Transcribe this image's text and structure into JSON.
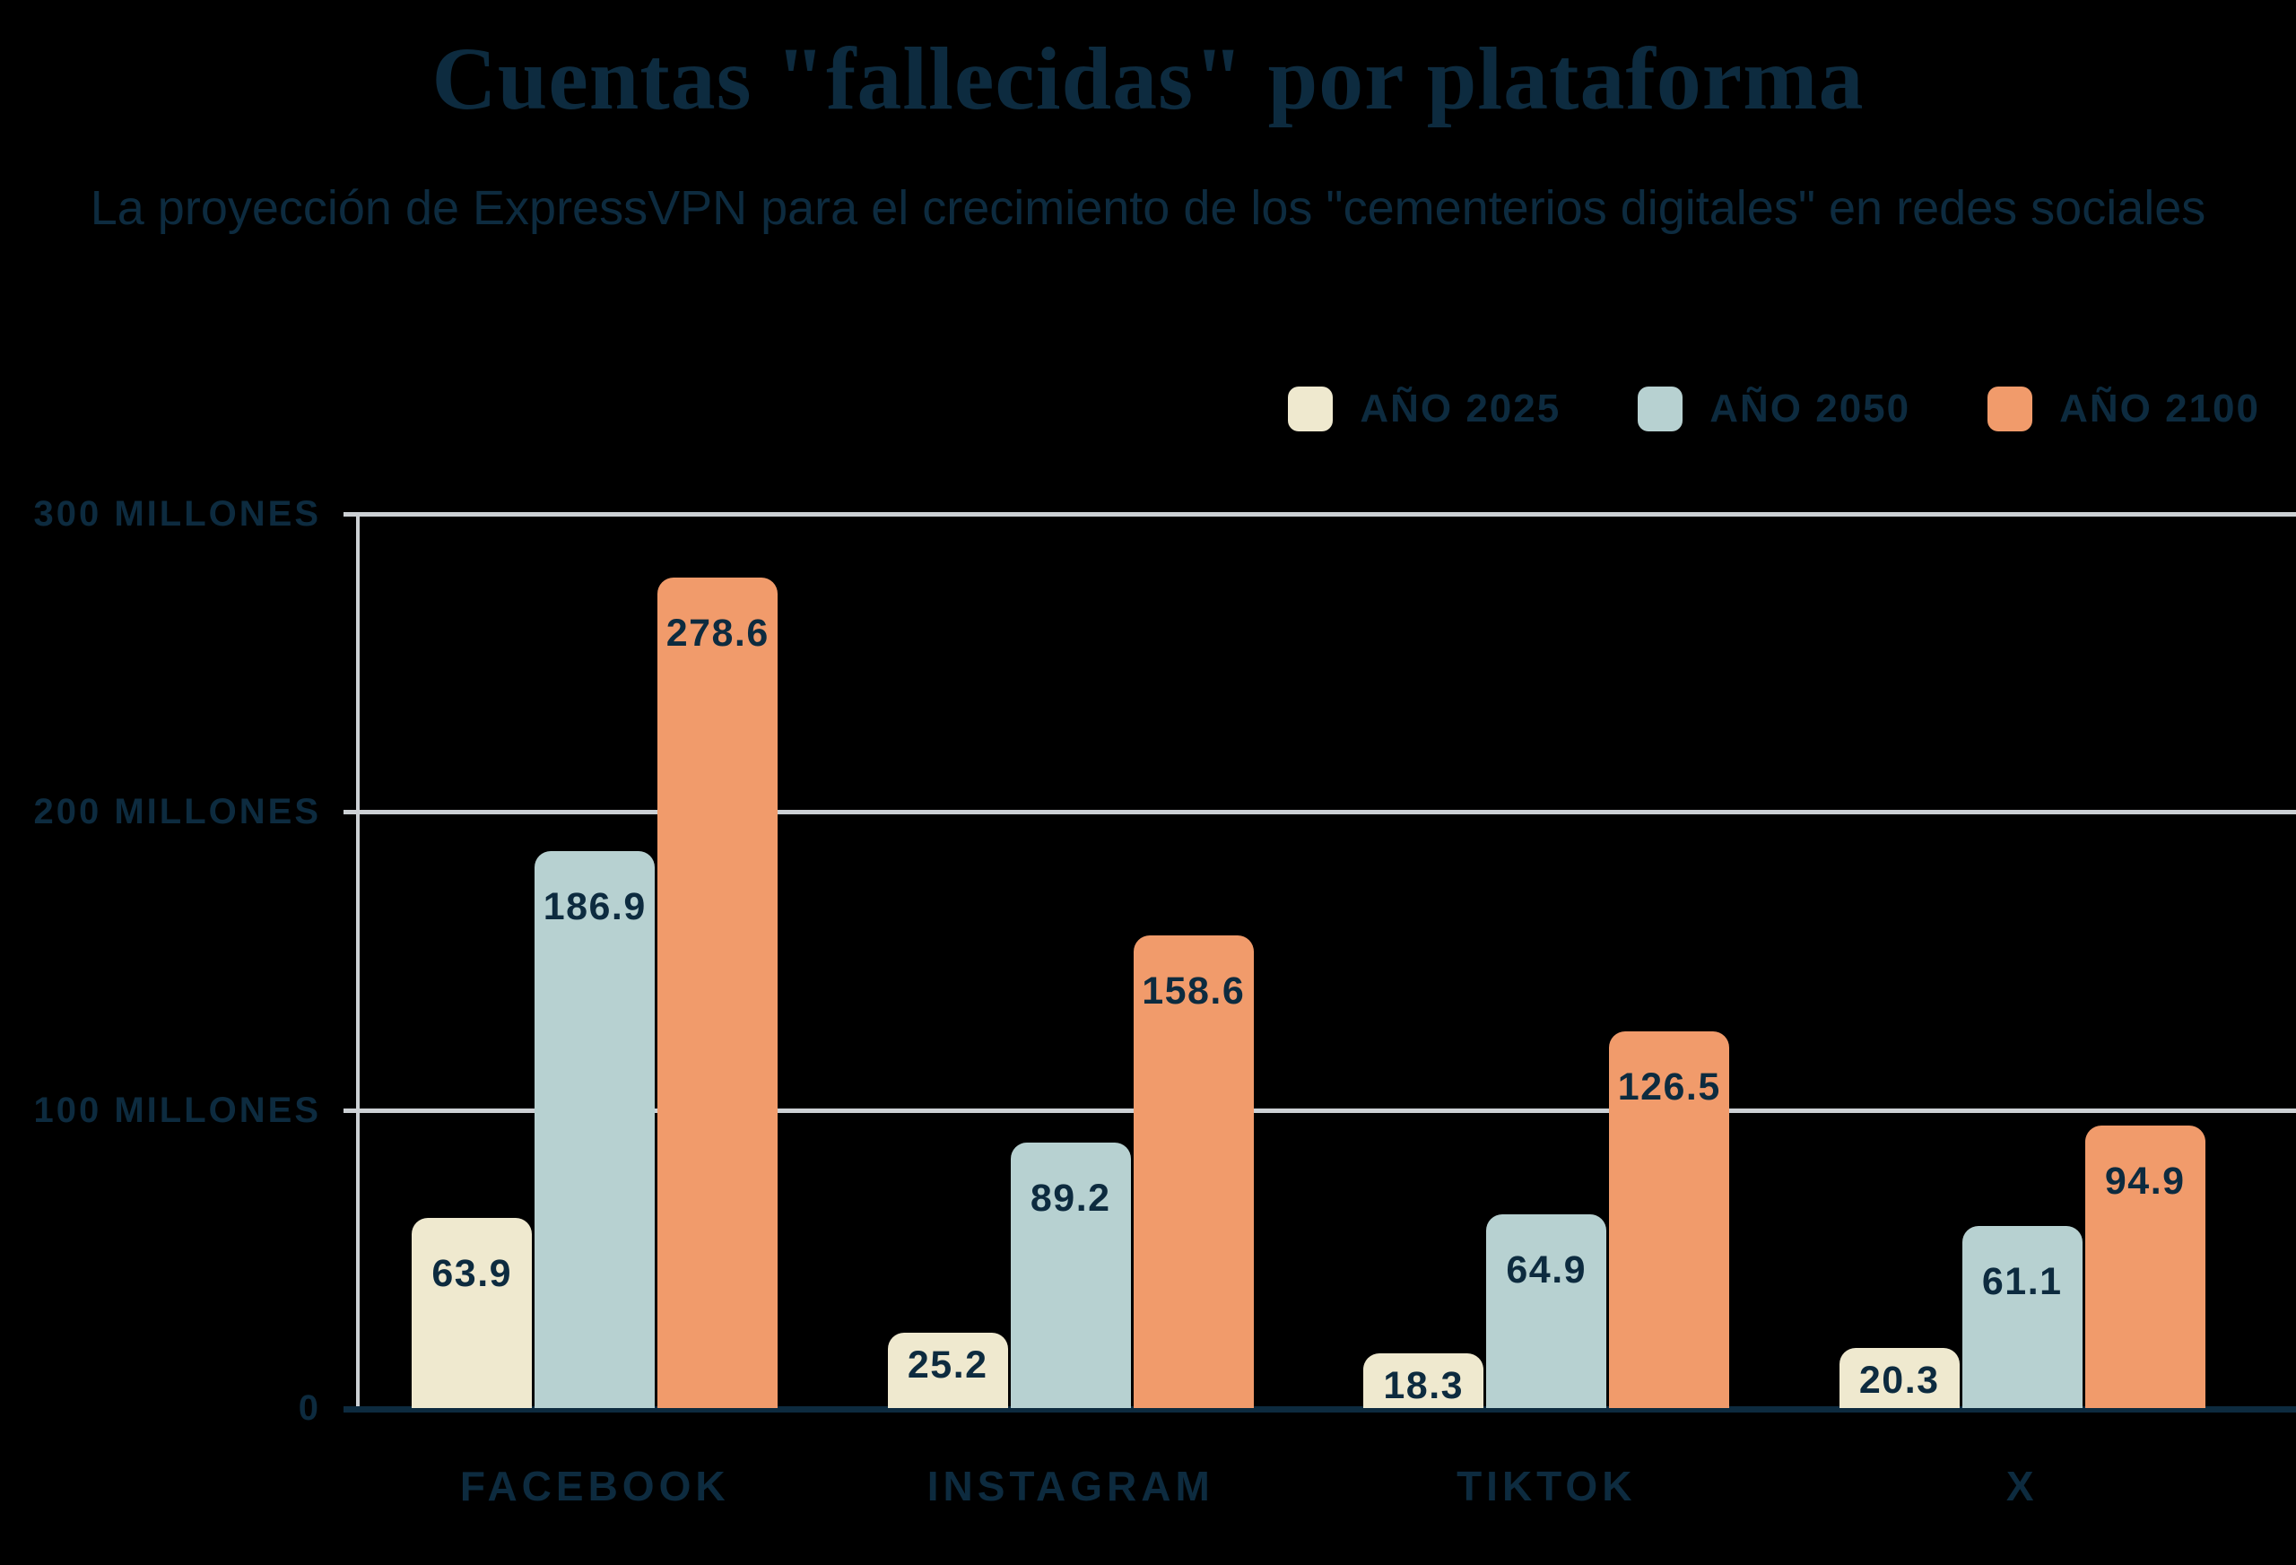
{
  "header": {
    "title": "Cuentas \"fallecidas\" por plataforma",
    "subtitle": "La proyección de ExpressVPN para el crecimiento de los \"cementerios digitales\" en redes sociales"
  },
  "colors": {
    "background": "#000000",
    "text_navy": "#0d2b3f",
    "gridline": "#ccd0d4",
    "axis_baseline": "#0d2b3f",
    "series_2025": "#efe9cf",
    "series_2050": "#b7d1d1",
    "series_2100": "#f19b6b"
  },
  "chart_data": {
    "type": "bar",
    "title": "Cuentas \"fallecidas\" por plataforma",
    "subtitle": "La proyección de ExpressVPN para el crecimiento de los \"cementerios digitales\" en redes sociales",
    "categories": [
      "FACEBOOK",
      "INSTAGRAM",
      "TIKTOK",
      "X"
    ],
    "series": [
      {
        "name": "AÑO 2025",
        "color": "#efe9cf",
        "values": [
          63.9,
          25.2,
          18.3,
          20.3
        ]
      },
      {
        "name": "AÑO 2050",
        "color": "#b7d1d1",
        "values": [
          186.9,
          89.2,
          64.9,
          61.1
        ]
      },
      {
        "name": "AÑO 2100",
        "color": "#f19b6b",
        "values": [
          278.6,
          158.6,
          126.5,
          94.9
        ]
      }
    ],
    "ylabel_ticks": [
      "300 MILLONES",
      "200 MILLONES",
      "100 MILLONES",
      "0"
    ],
    "ylim": [
      0,
      300
    ],
    "unit": "millones",
    "grid": true,
    "legend_position": "top-right"
  }
}
